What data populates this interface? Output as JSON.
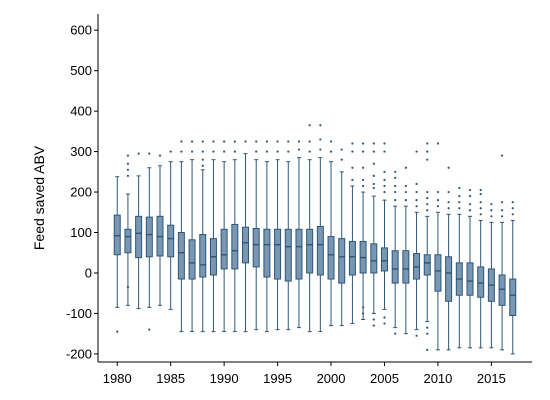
{
  "chart_data": {
    "type": "box",
    "title": "",
    "xlabel": "",
    "ylabel": "Feed saved ABV",
    "ylim": [
      -220,
      640
    ],
    "xlim": [
      1978.2,
      2018.8
    ],
    "y_ticks": [
      -200,
      -100,
      0,
      100,
      200,
      300,
      400,
      500,
      600
    ],
    "x_ticks": [
      1980,
      1985,
      1990,
      1995,
      2000,
      2005,
      2010,
      2015
    ],
    "grid": false,
    "boxes": [
      {
        "year": 1980,
        "q1": 45,
        "median": 92,
        "q3": 143,
        "low": -85,
        "high": 238,
        "outliers": [
          -145
        ]
      },
      {
        "year": 1981,
        "q1": 50,
        "median": 90,
        "q3": 108,
        "low": -80,
        "high": 195,
        "outliers": [
          -35,
          240,
          255,
          270,
          290
        ]
      },
      {
        "year": 1982,
        "q1": 38,
        "median": 98,
        "q3": 140,
        "low": -88,
        "high": 240,
        "outliers": [
          295
        ]
      },
      {
        "year": 1983,
        "q1": 40,
        "median": 95,
        "q3": 138,
        "low": -85,
        "high": 260,
        "outliers": [
          -140,
          295
        ]
      },
      {
        "year": 1984,
        "q1": 42,
        "median": 90,
        "q3": 140,
        "low": -80,
        "high": 265,
        "outliers": [
          290
        ]
      },
      {
        "year": 1985,
        "q1": 40,
        "median": 85,
        "q3": 118,
        "low": -90,
        "high": 275,
        "outliers": [
          300
        ]
      },
      {
        "year": 1986,
        "q1": -15,
        "median": 50,
        "q3": 100,
        "low": -145,
        "high": 275,
        "outliers": [
          300,
          325
        ]
      },
      {
        "year": 1987,
        "q1": -15,
        "median": 25,
        "q3": 82,
        "low": -145,
        "high": 280,
        "outliers": [
          300,
          325
        ]
      },
      {
        "year": 1988,
        "q1": -10,
        "median": 20,
        "q3": 95,
        "low": -145,
        "high": 255,
        "outliers": [
          265,
          280,
          300,
          325
        ]
      },
      {
        "year": 1989,
        "q1": -5,
        "median": 40,
        "q3": 85,
        "low": -145,
        "high": 280,
        "outliers": [
          300,
          325
        ]
      },
      {
        "year": 1990,
        "q1": 10,
        "median": 45,
        "q3": 108,
        "low": -145,
        "high": 275,
        "outliers": [
          300,
          325
        ]
      },
      {
        "year": 1991,
        "q1": 10,
        "median": 55,
        "q3": 120,
        "low": -145,
        "high": 280,
        "outliers": [
          300,
          325
        ]
      },
      {
        "year": 1992,
        "q1": 25,
        "median": 75,
        "q3": 113,
        "low": -145,
        "high": 295,
        "outliers": [
          325
        ]
      },
      {
        "year": 1993,
        "q1": 15,
        "median": 70,
        "q3": 110,
        "low": -140,
        "high": 280,
        "outliers": [
          300,
          325
        ]
      },
      {
        "year": 1994,
        "q1": -10,
        "median": 70,
        "q3": 108,
        "low": -145,
        "high": 275,
        "outliers": [
          300,
          325
        ]
      },
      {
        "year": 1995,
        "q1": -15,
        "median": 70,
        "q3": 108,
        "low": -140,
        "high": 280,
        "outliers": [
          300,
          325
        ]
      },
      {
        "year": 1996,
        "q1": -20,
        "median": 65,
        "q3": 108,
        "low": -140,
        "high": 275,
        "outliers": [
          300,
          325
        ]
      },
      {
        "year": 1997,
        "q1": -15,
        "median": 65,
        "q3": 108,
        "low": -135,
        "high": 285,
        "outliers": [
          305,
          325
        ]
      },
      {
        "year": 1998,
        "q1": 0,
        "median": 70,
        "q3": 108,
        "low": -145,
        "high": 280,
        "outliers": [
          300,
          325,
          365
        ]
      },
      {
        "year": 1999,
        "q1": -5,
        "median": 70,
        "q3": 115,
        "low": -145,
        "high": 285,
        "outliers": [
          305,
          330,
          365
        ]
      },
      {
        "year": 2000,
        "q1": -15,
        "median": 45,
        "q3": 90,
        "low": -130,
        "high": 275,
        "outliers": [
          300,
          325
        ]
      },
      {
        "year": 2001,
        "q1": -25,
        "median": 40,
        "q3": 85,
        "low": -130,
        "high": 250,
        "outliers": [
          280,
          305
        ]
      },
      {
        "year": 2002,
        "q1": -5,
        "median": 40,
        "q3": 78,
        "low": -125,
        "high": 215,
        "outliers": [
          230,
          260,
          300,
          320
        ]
      },
      {
        "year": 2003,
        "q1": 0,
        "median": 38,
        "q3": 78,
        "low": -115,
        "high": 200,
        "outliers": [
          -100,
          -85,
          215,
          230,
          260,
          300,
          320
        ]
      },
      {
        "year": 2004,
        "q1": 0,
        "median": 30,
        "q3": 72,
        "low": -100,
        "high": 190,
        "outliers": [
          -115,
          -130,
          210,
          220,
          240,
          270,
          300,
          320
        ]
      },
      {
        "year": 2005,
        "q1": 5,
        "median": 30,
        "q3": 62,
        "low": -90,
        "high": 180,
        "outliers": [
          -110,
          -125,
          200,
          215,
          230,
          250,
          300,
          320
        ]
      },
      {
        "year": 2006,
        "q1": -25,
        "median": 10,
        "q3": 55,
        "low": -135,
        "high": 165,
        "outliers": [
          -150,
          180,
          200,
          215,
          235,
          250
        ]
      },
      {
        "year": 2007,
        "q1": -25,
        "median": 10,
        "q3": 55,
        "low": -150,
        "high": 165,
        "outliers": [
          180,
          200,
          215,
          260
        ]
      },
      {
        "year": 2008,
        "q1": -15,
        "median": 15,
        "q3": 48,
        "low": -140,
        "high": 150,
        "outliers": [
          -155,
          165,
          180,
          200,
          220,
          300
        ]
      },
      {
        "year": 2009,
        "q1": -5,
        "median": 25,
        "q3": 45,
        "low": -120,
        "high": 140,
        "outliers": [
          -135,
          -150,
          -190,
          155,
          170,
          185,
          200,
          280,
          300,
          320
        ]
      },
      {
        "year": 2010,
        "q1": -45,
        "median": 5,
        "q3": 45,
        "low": -190,
        "high": 150,
        "outliers": [
          165,
          180,
          200,
          320
        ]
      },
      {
        "year": 2011,
        "q1": -70,
        "median": 0,
        "q3": 40,
        "low": -190,
        "high": 145,
        "outliers": [
          160,
          175,
          200,
          260
        ]
      },
      {
        "year": 2012,
        "q1": -55,
        "median": -15,
        "q3": 25,
        "low": -185,
        "high": 145,
        "outliers": [
          160,
          175,
          190,
          210
        ]
      },
      {
        "year": 2013,
        "q1": -55,
        "median": -20,
        "q3": 25,
        "low": -185,
        "high": 140,
        "outliers": [
          155,
          170,
          190,
          205
        ]
      },
      {
        "year": 2014,
        "q1": -60,
        "median": -25,
        "q3": 15,
        "low": -185,
        "high": 130,
        "outliers": [
          145,
          160,
          175,
          195,
          205
        ]
      },
      {
        "year": 2015,
        "q1": -70,
        "median": -30,
        "q3": 10,
        "low": -185,
        "high": 125,
        "outliers": [
          140,
          155,
          170
        ]
      },
      {
        "year": 2016,
        "q1": -80,
        "median": -40,
        "q3": -5,
        "low": -190,
        "high": 125,
        "outliers": [
          140,
          155,
          175,
          290
        ]
      },
      {
        "year": 2017,
        "q1": -105,
        "median": -55,
        "q3": -15,
        "low": -200,
        "high": 130,
        "outliers": [
          145,
          160,
          175
        ]
      }
    ]
  }
}
